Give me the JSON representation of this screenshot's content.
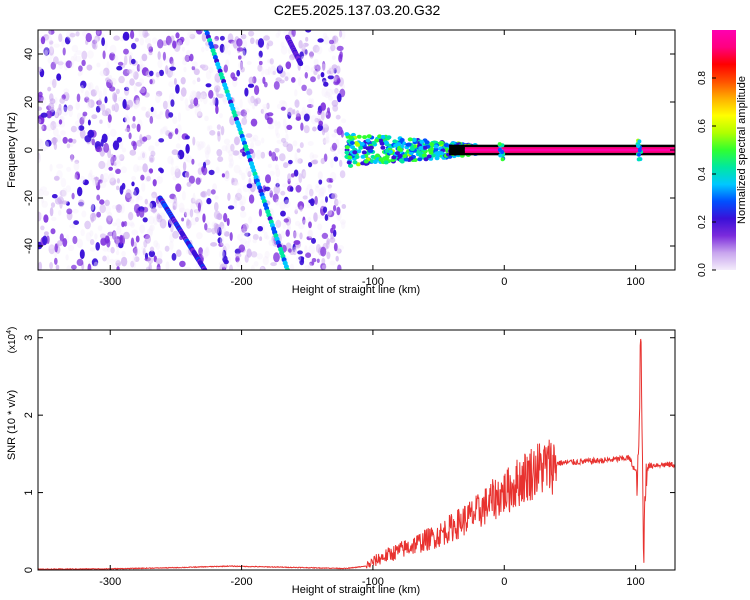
{
  "title": "C2E5.2025.137.03.20.G32",
  "chart_data": [
    {
      "type": "heatmap",
      "xlabel": "Height of straight line (km)",
      "ylabel": "Frequency (Hz)",
      "xlim": [
        -355,
        130
      ],
      "ylim": [
        -50,
        50
      ],
      "x_ticks": [
        -300,
        -200,
        -100,
        0,
        100
      ],
      "y_ticks": [
        -40,
        -20,
        0,
        20,
        40
      ],
      "colorbar": {
        "label": "Normalized spectral amplitude",
        "range": [
          0.0,
          1.0
        ],
        "ticks": [
          0.0,
          0.2,
          0.4,
          0.6,
          0.8
        ],
        "colors": [
          "#f4ecfb",
          "#c9a6ee",
          "#7b2bdc",
          "#3a10d8",
          "#0050ff",
          "#00c8ff",
          "#00e8a0",
          "#30ff30",
          "#b0ff00",
          "#ffff00",
          "#ffb000",
          "#ff5000",
          "#ff0000",
          "#ff0080",
          "#ff00b0"
        ]
      },
      "features": {
        "noise_region_x": [
          -355,
          -122
        ],
        "streaks": [
          {
            "x_start": -227,
            "y_start": 50,
            "x_end": -165,
            "y_end": -50,
            "peak": 0.45
          },
          {
            "x_start": -262,
            "y_start": -20,
            "x_end": -228,
            "y_end": -50,
            "peak": 0.3
          },
          {
            "x_start": -165,
            "y_start": 47,
            "x_end": -155,
            "y_end": 36,
            "peak": 0.25
          }
        ],
        "carrier": {
          "y": 0,
          "x_start": -120,
          "x_end": 130,
          "peak_amplitude": 1.0,
          "spread_start_hz": 6,
          "onset_x": -30
        },
        "carrier_feature_x": [
          -2,
          103
        ]
      }
    },
    {
      "type": "line",
      "xlabel": "Height of straight line (km)",
      "ylabel": "SNR (10 * v/v)",
      "y_multiplier_label": "(x10",
      "y_multiplier_exp": "4",
      "y_multiplier_close": ")",
      "xlim": [
        -355,
        130
      ],
      "ylim": [
        0,
        3.1
      ],
      "x_ticks": [
        -300,
        -200,
        -100,
        0,
        100
      ],
      "y_ticks": [
        0,
        1,
        2,
        3
      ],
      "color": "#e8322f",
      "series": [
        {
          "x": [
            -355,
            -300,
            -250,
            -210,
            -180,
            -150,
            -120,
            -105,
            -95,
            -80,
            -65,
            -50,
            -35,
            -20,
            -5,
            5,
            15,
            25,
            40,
            60,
            80,
            95,
            102,
            104,
            106,
            108,
            115,
            130
          ],
          "y": [
            0.01,
            0.015,
            0.03,
            0.05,
            0.04,
            0.03,
            0.02,
            0.05,
            0.15,
            0.25,
            0.35,
            0.45,
            0.6,
            0.75,
            0.95,
            1.05,
            1.2,
            1.3,
            1.38,
            1.4,
            1.42,
            1.45,
            1.2,
            3.1,
            0.2,
            1.33,
            1.36,
            1.36
          ]
        }
      ]
    }
  ]
}
